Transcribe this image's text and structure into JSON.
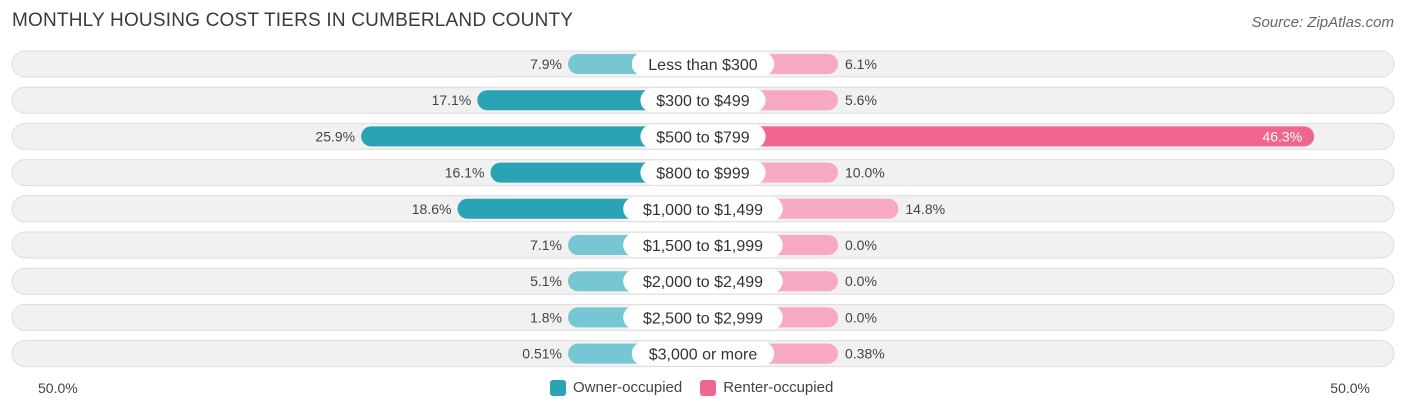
{
  "title": "MONTHLY HOUSING COST TIERS IN CUMBERLAND COUNTY",
  "source": "Source: ZipAtlas.com",
  "axis": {
    "left_label": "50.0%",
    "right_label": "50.0%"
  },
  "legend": {
    "owner": {
      "label": "Owner-occupied",
      "color": "#2aa3b5"
    },
    "renter": {
      "label": "Renter-occupied",
      "color": "#f0668f"
    }
  },
  "chart_data": {
    "type": "bar",
    "orientation": "diverging-horizontal",
    "xlim": [
      -50,
      50
    ],
    "categories": [
      "Less than $300",
      "$300 to $499",
      "$500 to $799",
      "$800 to $999",
      "$1,000 to $1,499",
      "$1,500 to $1,999",
      "$2,000 to $2,499",
      "$2,500 to $2,999",
      "$3,000 or more"
    ],
    "series": [
      {
        "name": "Owner-occupied",
        "values": [
          7.9,
          17.1,
          25.9,
          16.1,
          18.6,
          7.1,
          5.1,
          1.8,
          0.51
        ],
        "labels": [
          "7.9%",
          "17.1%",
          "25.9%",
          "16.1%",
          "18.6%",
          "7.1%",
          "5.1%",
          "1.8%",
          "0.51%"
        ]
      },
      {
        "name": "Renter-occupied",
        "values": [
          6.1,
          5.6,
          46.3,
          10.0,
          14.8,
          0.0,
          0.0,
          0.0,
          0.38
        ],
        "labels": [
          "6.1%",
          "5.6%",
          "46.3%",
          "10.0%",
          "14.8%",
          "0.0%",
          "0.0%",
          "0.0%",
          "0.38%"
        ]
      }
    ]
  }
}
